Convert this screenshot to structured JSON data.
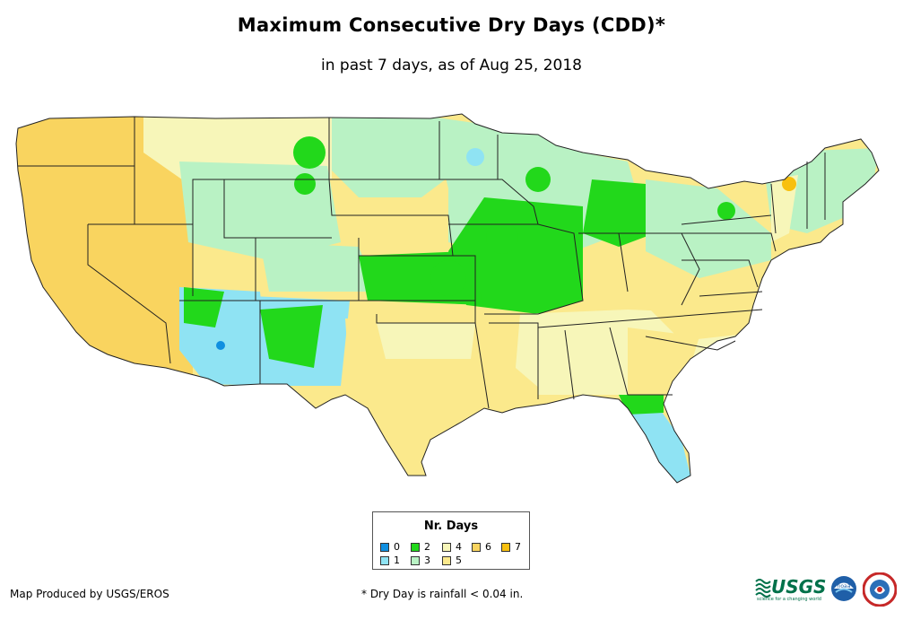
{
  "title": "Maximum Consecutive Dry Days (CDD)*",
  "subtitle": "in past 7 days, as of Aug 25, 2018",
  "legend": {
    "title": "Nr. Days",
    "items": [
      {
        "label": "0",
        "color": "#0f8fe0"
      },
      {
        "label": "1",
        "color": "#8fe3f3"
      },
      {
        "label": "2",
        "color": "#22d81b"
      },
      {
        "label": "3",
        "color": "#b9f2c4"
      },
      {
        "label": "4",
        "color": "#f7f6b9"
      },
      {
        "label": "5",
        "color": "#fbe98c"
      },
      {
        "label": "6",
        "color": "#f9d45f"
      },
      {
        "label": "7",
        "color": "#f8c00f"
      }
    ]
  },
  "credit": "Map Produced by USGS/EROS",
  "footnote": "* Dry Day is rainfall < 0.04 in.",
  "logos": {
    "usgs": "USGS",
    "usgs_tagline": "science for a changing world",
    "noaa": "noaa"
  }
}
